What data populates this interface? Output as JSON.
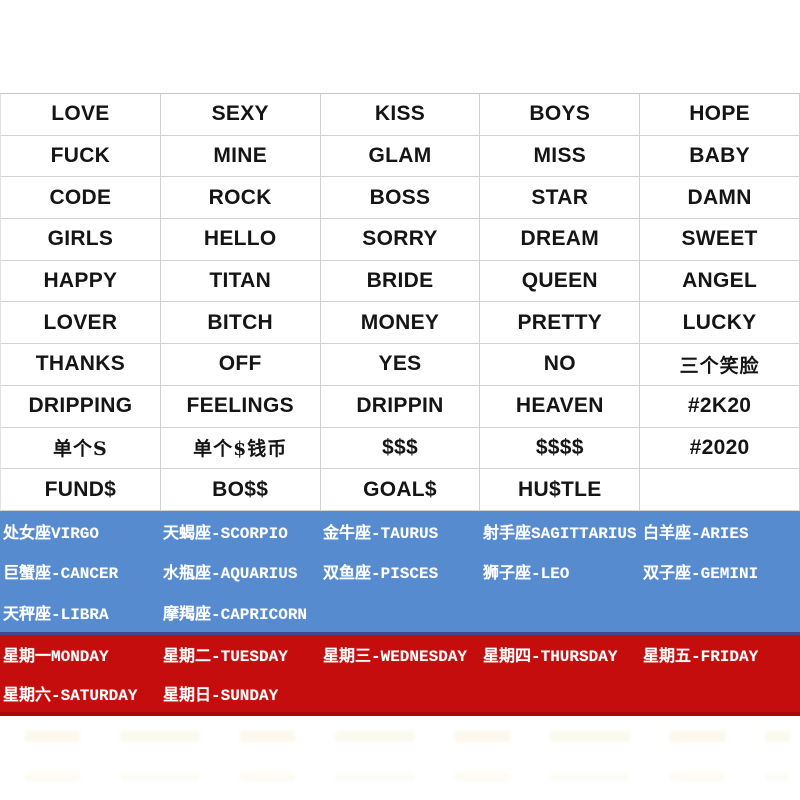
{
  "colors": {
    "zodiac-bg": "#568bd0",
    "weekday-bg": "#c60d0d",
    "word-text": "#151515",
    "band-text": "#ffffff",
    "table-border": "#d2d2d2"
  },
  "word_table": {
    "rows": [
      [
        "LOVE",
        "SEXY",
        "KISS",
        "BOYS",
        "HOPE"
      ],
      [
        "FUCK",
        "MINE",
        "GLAM",
        "MISS",
        "BABY"
      ],
      [
        "CODE",
        "ROCK",
        "BOSS",
        "STAR",
        "DAMN"
      ],
      [
        "GIRLS",
        "HELLO",
        "SORRY",
        "DREAM",
        "SWEET"
      ],
      [
        "HAPPY",
        "TITAN",
        "BRIDE",
        "QUEEN",
        "ANGEL"
      ],
      [
        "LOVER",
        "BITCH",
        "MONEY",
        "PRETTY",
        "LUCKY"
      ],
      [
        "THANKS",
        "OFF",
        "YES",
        "NO",
        "三个笑脸"
      ],
      [
        "DRIPPING",
        "FEELINGS",
        "DRIPPIN",
        "HEAVEN",
        "#2K20"
      ],
      [
        "单个S",
        "单个$钱币",
        "$$$",
        "$$$$",
        "#2020"
      ],
      [
        "FUND$",
        "BO$$",
        "GOAL$",
        "HU$TLE",
        ""
      ]
    ]
  },
  "zodiac_section": {
    "rows": [
      [
        "处女座VIRGO",
        "天蝎座-SCORPIO",
        "金牛座-TAURUS",
        "射手座SAGITTARIUS",
        "白羊座-ARIES"
      ],
      [
        "巨蟹座-CANCER",
        "水瓶座-AQUARIUS",
        "双鱼座-PISCES",
        "狮子座-LEO",
        "双子座-GEMINI"
      ],
      [
        "天秤座-LIBRA",
        "摩羯座-CAPRICORN",
        "",
        "",
        ""
      ]
    ]
  },
  "weekday_section": {
    "rows": [
      [
        "星期一MONDAY",
        "星期二-TUESDAY",
        "星期三-WEDNESDAY",
        "星期四-THURSDAY",
        "星期五-FRIDAY"
      ],
      [
        "星期六-SATURDAY",
        "星期日-SUNDAY",
        "",
        "",
        ""
      ]
    ]
  }
}
